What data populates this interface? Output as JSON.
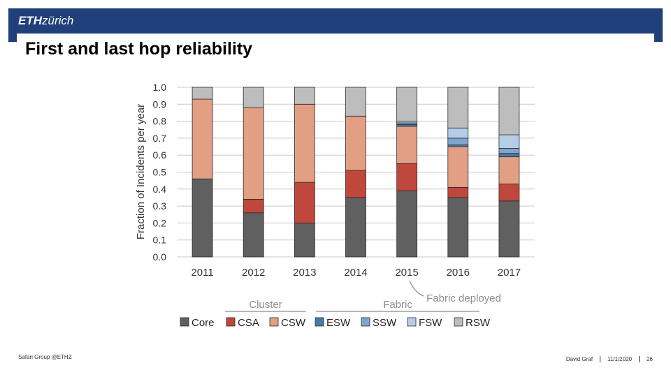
{
  "header": {
    "logo_bold": "ETH",
    "logo_italic": "zürich"
  },
  "slide": {
    "title": "First and last hop reliability"
  },
  "footer": {
    "left": "Safari Group @ETHZ",
    "presenter": "David Graf",
    "date": "11/1/2020",
    "page": "26"
  },
  "chart_data": {
    "type": "bar",
    "stacked": true,
    "categories": [
      "2011",
      "2012",
      "2013",
      "2014",
      "2015",
      "2016",
      "2017"
    ],
    "ylabel": "Fraction of Incidents per year",
    "ylim": [
      0,
      1.0
    ],
    "yticks": [
      "0.0",
      "0.1",
      "0.2",
      "0.3",
      "0.4",
      "0.5",
      "0.6",
      "0.7",
      "0.8",
      "0.9",
      "1.0"
    ],
    "grid": true,
    "series": [
      {
        "name": "Core",
        "color": "#606060",
        "values": [
          0.46,
          0.26,
          0.2,
          0.35,
          0.39,
          0.35,
          0.33
        ]
      },
      {
        "name": "CSA",
        "color": "#c0473c",
        "values": [
          0.0,
          0.08,
          0.24,
          0.16,
          0.16,
          0.06,
          0.1
        ]
      },
      {
        "name": "CSW",
        "color": "#e29f84",
        "values": [
          0.47,
          0.54,
          0.46,
          0.32,
          0.22,
          0.24,
          0.16
        ]
      },
      {
        "name": "ESW",
        "color": "#4a78a8",
        "values": [
          0.0,
          0.0,
          0.0,
          0.0,
          0.01,
          0.01,
          0.02
        ]
      },
      {
        "name": "SSW",
        "color": "#7fa6cf",
        "values": [
          0.0,
          0.0,
          0.0,
          0.0,
          0.01,
          0.04,
          0.03
        ]
      },
      {
        "name": "FSW",
        "color": "#b5cde6",
        "values": [
          0.0,
          0.0,
          0.0,
          0.0,
          0.01,
          0.06,
          0.08
        ]
      },
      {
        "name": "RSW",
        "color": "#bdbdbd",
        "values": [
          0.07,
          0.12,
          0.1,
          0.17,
          0.2,
          0.24,
          0.28
        ]
      }
    ],
    "legend": {
      "placement": "bottom",
      "group_labels": [
        {
          "label": "Cluster",
          "series": [
            "Core",
            "CSA",
            "CSW"
          ]
        },
        {
          "label": "Fabric",
          "series": [
            "ESW",
            "SSW",
            "FSW",
            "RSW"
          ]
        }
      ]
    },
    "annotations": [
      {
        "text": "Fabric deployed",
        "category": "2015"
      }
    ]
  }
}
